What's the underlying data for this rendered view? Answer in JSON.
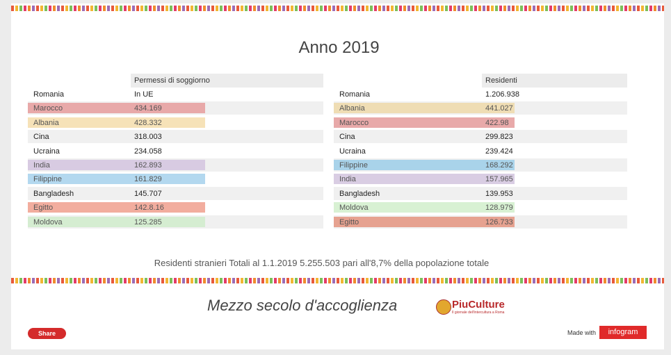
{
  "title": "Anno 2019",
  "tables": [
    {
      "header": "Permessi di soggiorno",
      "rows": [
        {
          "cells": [
            "Romania",
            "In UE"
          ]
        },
        {
          "cells": [
            "Marocco",
            "434.169"
          ],
          "color": "#e8a9a9"
        },
        {
          "cells": [
            "Albania",
            "428.332"
          ],
          "color": "#f6e2b8"
        },
        {
          "cells": [
            "Cina",
            "318.003"
          ]
        },
        {
          "cells": [
            "Ucraina",
            "234.058"
          ]
        },
        {
          "cells": [
            "India",
            "162.893"
          ],
          "color": "#d8cbe2"
        },
        {
          "cells": [
            "Filippine",
            "161.829"
          ],
          "color": "#b3d8ef"
        },
        {
          "cells": [
            "Bangladesh",
            "145.707"
          ]
        },
        {
          "cells": [
            "Egitto",
            "142.8.16"
          ],
          "color": "#f2ad9e"
        },
        {
          "cells": [
            "Moldova",
            "125.285"
          ],
          "color": "#d5edd1"
        }
      ]
    },
    {
      "header": "Residenti",
      "rows": [
        {
          "cells": [
            "Romania",
            "1.206.938"
          ]
        },
        {
          "cells": [
            "Albania",
            "441.027"
          ],
          "color": "#efddb4"
        },
        {
          "cells": [
            "Marocco",
            "422.98"
          ],
          "color": "#e8a9a9"
        },
        {
          "cells": [
            "Cina",
            "299.823"
          ]
        },
        {
          "cells": [
            "Ucraina",
            "239.424"
          ]
        },
        {
          "cells": [
            "Filippine",
            "168.292"
          ],
          "color": "#a9d3ea"
        },
        {
          "cells": [
            "India",
            "157.965"
          ],
          "color": "#d9cde3"
        },
        {
          "cells": [
            "Bangladesh",
            "139.953"
          ]
        },
        {
          "cells": [
            "Moldova",
            "128.979"
          ],
          "color": "#d8f1d3"
        },
        {
          "cells": [
            "Egitto",
            "126.733"
          ],
          "color": "#e6a290"
        }
      ]
    }
  ],
  "footnote": "Residenti stranieri Totali al 1.1.2019  5.255.503  pari all'8,7% della popolazione totale",
  "tagline": "Mezzo secolo d'accoglienza",
  "logo": {
    "name": "PiuCulture",
    "subtitle": "Il giornale dell'intercultura a Roma"
  },
  "share": "Share",
  "made_with": "Made with",
  "brand": "infogram"
}
